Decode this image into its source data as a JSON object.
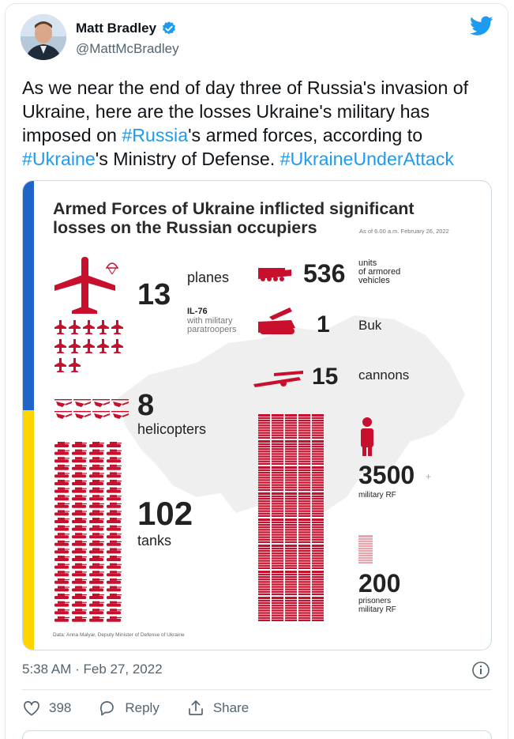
{
  "author": {
    "name": "Matt Bradley",
    "handle": "@MattMcBradley",
    "verified": true
  },
  "tweet": {
    "segments": [
      {
        "text": "As we near the end of day three of Russia's invasion of Ukraine, here are the losses Ukraine's military has imposed on ",
        "type": "text"
      },
      {
        "text": "#Russia",
        "type": "hashtag"
      },
      {
        "text": "'s armed forces, according to ",
        "type": "text"
      },
      {
        "text": "#Ukraine",
        "type": "hashtag"
      },
      {
        "text": "'s Ministry of Defense. ",
        "type": "text"
      },
      {
        "text": "#UkraineUnderAttack",
        "type": "hashtag"
      }
    ],
    "timestamp": "5:38 AM · Feb 27, 2022"
  },
  "actions": {
    "like_count": "398",
    "reply_label": "Reply",
    "share_label": "Share"
  },
  "infographic": {
    "title_line1": "Armed Forces of Ukraine inflicted significant",
    "title_line2": "losses on the Russian occupiers",
    "as_of": "As of 6.00 a.m. February 26, 2022",
    "planes_value": "13",
    "planes_label": "planes",
    "il76_line1": "IL-76",
    "il76_line2": "with military",
    "il76_line3": "paratroopers",
    "helicopters_value": "8",
    "helicopters_label": "helicopters",
    "tanks_value": "102",
    "tanks_label": "tanks",
    "armored_value": "536",
    "armored_line1": "units",
    "armored_line2": "of armored",
    "armored_line3": "vehicles",
    "buk_value": "1",
    "buk_label": "Buk",
    "cannons_value": "15",
    "cannons_label": "cannons",
    "military_value": "3500",
    "military_plus": "+",
    "military_label": "military RF",
    "prisoners_value": "200",
    "prisoners_line1": "prisoners",
    "prisoners_line2": "military RF",
    "source": "Data: Anna Malyar, Deputy Minister of Defense of Ukraine",
    "colors": {
      "accent_red": "#c8102e",
      "ukraine_blue": "#1f64c8",
      "ukraine_yellow": "#ffd500"
    }
  },
  "icons": {
    "verified": "verified-badge-icon",
    "twitter": "twitter-bird-icon",
    "info": "info-icon",
    "like": "heart-icon",
    "reply": "reply-bubble-icon",
    "share": "share-icon"
  }
}
